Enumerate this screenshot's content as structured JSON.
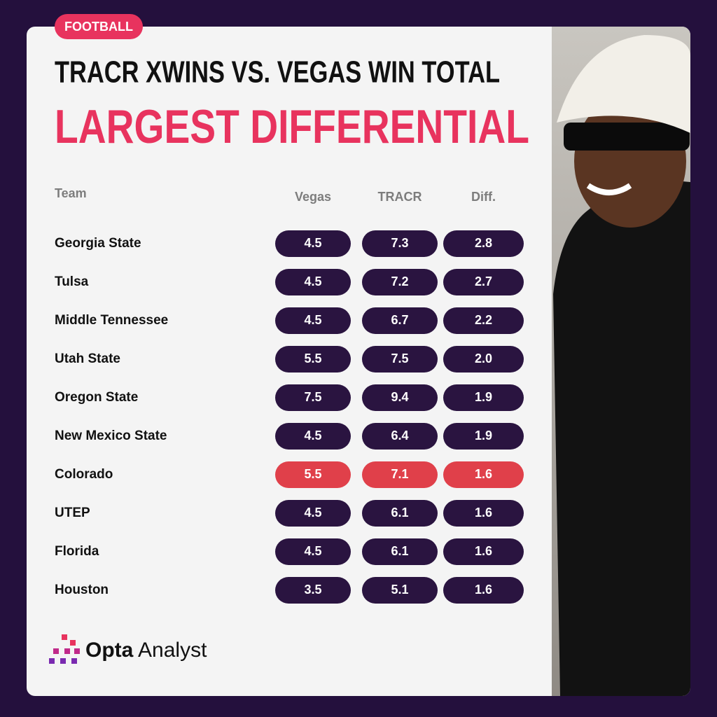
{
  "tag": "FOOTBALL",
  "title": "TRACR XWINS VS. VEGAS WIN TOTAL",
  "subtitle": "LARGEST DIFFERENTIAL",
  "table": {
    "headers": [
      "Team",
      "Vegas",
      "TRACR",
      "Diff."
    ],
    "rows": [
      {
        "cells": [
          "Georgia State",
          "4.5",
          "7.3",
          "2.8"
        ]
      },
      {
        "cells": [
          "Tulsa",
          "4.5",
          "7.2",
          "2.7"
        ]
      },
      {
        "cells": [
          "Middle Tennessee",
          "4.5",
          "6.7",
          "2.2"
        ]
      },
      {
        "cells": [
          "Utah State",
          "5.5",
          "7.5",
          "2.0"
        ]
      },
      {
        "cells": [
          "Oregon State",
          "7.5",
          "9.4",
          "1.9"
        ]
      },
      {
        "cells": [
          "New Mexico State",
          "4.5",
          "6.4",
          "1.9"
        ]
      },
      {
        "cells": [
          "Colorado",
          "5.5",
          "7.1",
          "1.6"
        ],
        "highlight": true
      },
      {
        "cells": [
          "UTEP",
          "4.5",
          "6.1",
          "1.6"
        ]
      },
      {
        "cells": [
          "Florida",
          "4.5",
          "6.1",
          "1.6"
        ]
      },
      {
        "cells": [
          "Houston",
          "3.5",
          "5.1",
          "1.6"
        ]
      }
    ]
  },
  "footer": {
    "brand_bold": "Opta",
    "brand_light": "Analyst"
  }
}
